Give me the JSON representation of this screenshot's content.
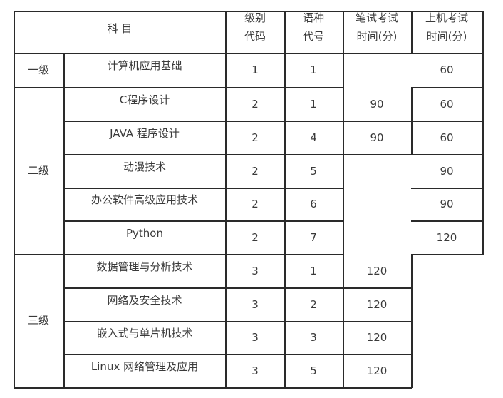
{
  "header": {
    "subject": "科  目",
    "level_code": [
      "级别",
      "代码"
    ],
    "language_code": [
      "语种",
      "代号"
    ],
    "written_time": [
      "笔试考试",
      "时间(分)"
    ],
    "computer_time": [
      "上机考试",
      "时间(分)"
    ]
  },
  "levels": [
    "一级",
    "二级",
    "三级"
  ],
  "rows": [
    {
      "subject": "计算机应用基础",
      "level": "1",
      "lang": "1",
      "written": "",
      "computer": "60"
    },
    {
      "subject": "C程序设计",
      "level": "2",
      "lang": "1",
      "written": "90",
      "computer": "60"
    },
    {
      "subject": "JAVA 程序设计",
      "level": "2",
      "lang": "4",
      "written": "90",
      "computer": "60"
    },
    {
      "subject": "动漫技术",
      "level": "2",
      "lang": "5",
      "written": "",
      "computer": "90"
    },
    {
      "subject": "办公软件高级应用技术",
      "level": "2",
      "lang": "6",
      "written": "",
      "computer": "90"
    },
    {
      "subject": "Python",
      "level": "2",
      "lang": "7",
      "written": "",
      "computer": "120"
    },
    {
      "subject": "数据管理与分析技术",
      "level": "3",
      "lang": "1",
      "written": "120",
      "computer": ""
    },
    {
      "subject": "网络及安全技术",
      "level": "3",
      "lang": "2",
      "written": "120",
      "computer": ""
    },
    {
      "subject": "嵌入式与单片机技术",
      "level": "3",
      "lang": "3",
      "written": "120",
      "computer": ""
    },
    {
      "subject": "Linux 网络管理及应用",
      "level": "3",
      "lang": "5",
      "written": "120",
      "computer": ""
    }
  ]
}
